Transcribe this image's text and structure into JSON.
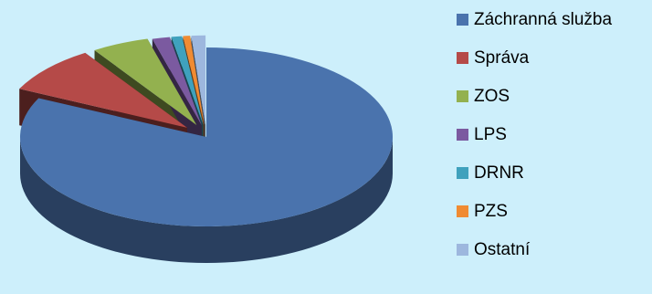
{
  "chart_data": {
    "type": "pie",
    "style": "3d-exploded",
    "legend_position": "right",
    "slices": [
      {
        "name": "Záchranná služba",
        "value": 81.0,
        "color": "#4a73ad"
      },
      {
        "name": "Správa",
        "value": 8.5,
        "color": "#b54a48"
      },
      {
        "name": "ZOS",
        "value": 4.9,
        "color": "#93b14f"
      },
      {
        "name": "LPS",
        "value": 1.5,
        "color": "#7b5aa0"
      },
      {
        "name": "DRNR",
        "value": 0.9,
        "color": "#3fa1bd"
      },
      {
        "name": "PZS",
        "value": 0.6,
        "color": "#f08b32"
      },
      {
        "name": "Ostatní",
        "value": 1.2,
        "color": "#9db7de"
      }
    ]
  }
}
